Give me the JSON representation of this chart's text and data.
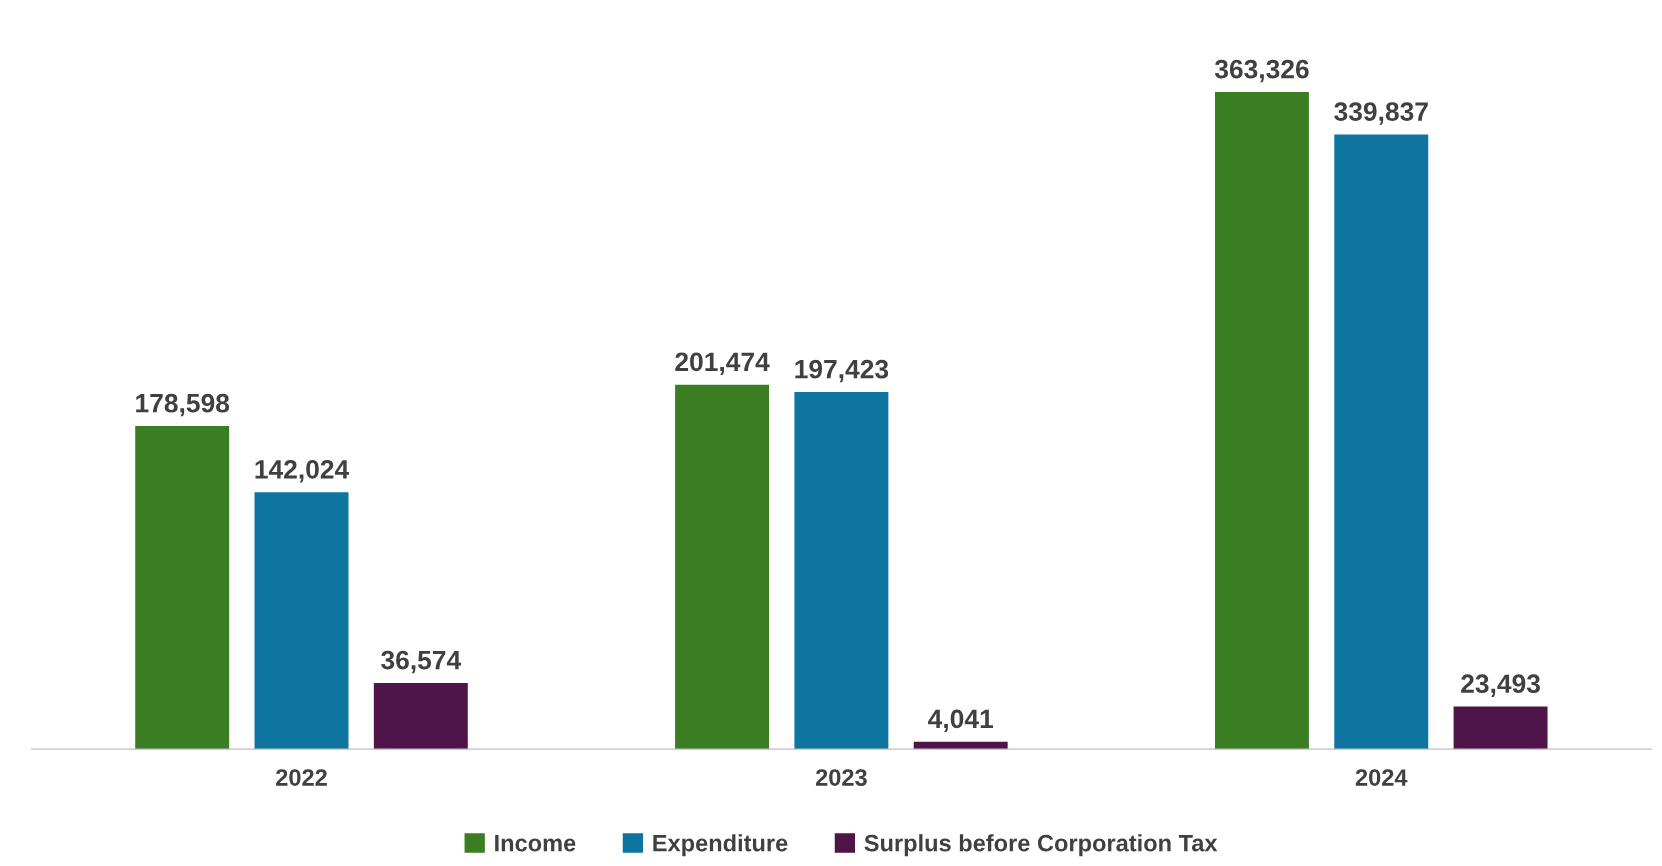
{
  "chart_data": {
    "type": "bar",
    "categories": [
      "2022",
      "2023",
      "2024"
    ],
    "series": [
      {
        "name": "Income",
        "color": "#3b7d23",
        "values": [
          178598,
          201474,
          363326
        ],
        "value_labels": [
          "178,598",
          "201,474",
          "363,326"
        ]
      },
      {
        "name": "Expenditure",
        "color": "#0e74a0",
        "values": [
          142024,
          197423,
          339837
        ],
        "value_labels": [
          "142,024",
          "197,423",
          "339,837"
        ]
      },
      {
        "name": "Surplus before Corporation Tax",
        "color": "#501548",
        "values": [
          36574,
          4041,
          23493
        ],
        "value_labels": [
          "36,574",
          "4,041",
          "23,493"
        ]
      }
    ],
    "legend": "bottom",
    "grid": false
  }
}
